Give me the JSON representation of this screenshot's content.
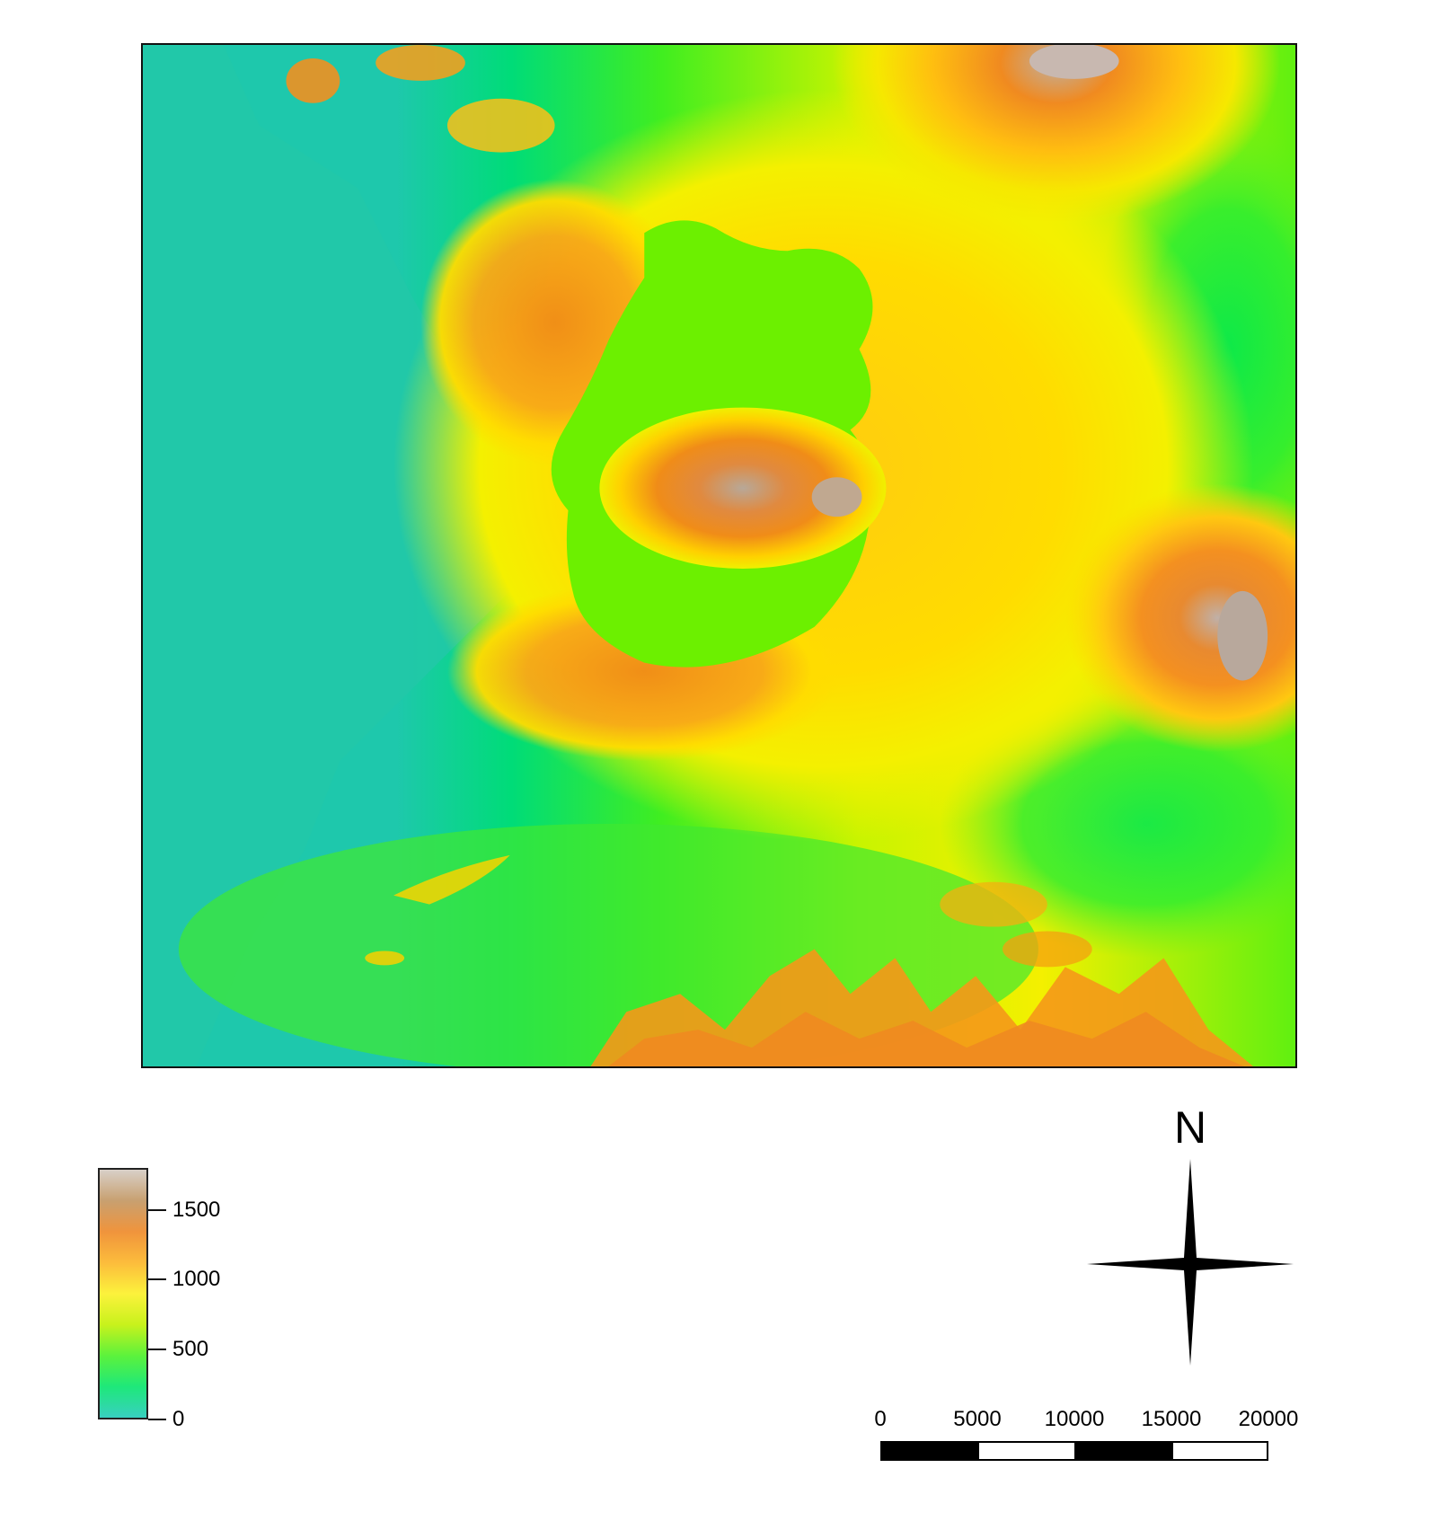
{
  "legend": {
    "ticks": [
      {
        "label": "1500",
        "value": 1500
      },
      {
        "label": "1000",
        "value": 1000
      },
      {
        "label": "500",
        "value": 500
      },
      {
        "label": "0",
        "value": 0
      }
    ],
    "max_value": 1800,
    "colors": [
      "#38d0c0",
      "#1ee87a",
      "#5cf23c",
      "#c8f21c",
      "#fcf23c",
      "#fcbc3c",
      "#f0943c",
      "#c8a070",
      "#d8d0c8"
    ]
  },
  "north_arrow": {
    "label": "N"
  },
  "scale_bar": {
    "labels": [
      "0",
      "5000",
      "10000",
      "15000",
      "20000"
    ],
    "segment_colors": [
      "#000000",
      "#ffffff",
      "#000000",
      "#ffffff"
    ]
  },
  "map": {
    "colors": {
      "lowland": "#1ec8ac",
      "low": "#00e060",
      "mid_low": "#6cf400",
      "mid": "#e8f400",
      "mid_high": "#ffd000",
      "high": "#f29018",
      "peak": "#b8a898"
    }
  }
}
